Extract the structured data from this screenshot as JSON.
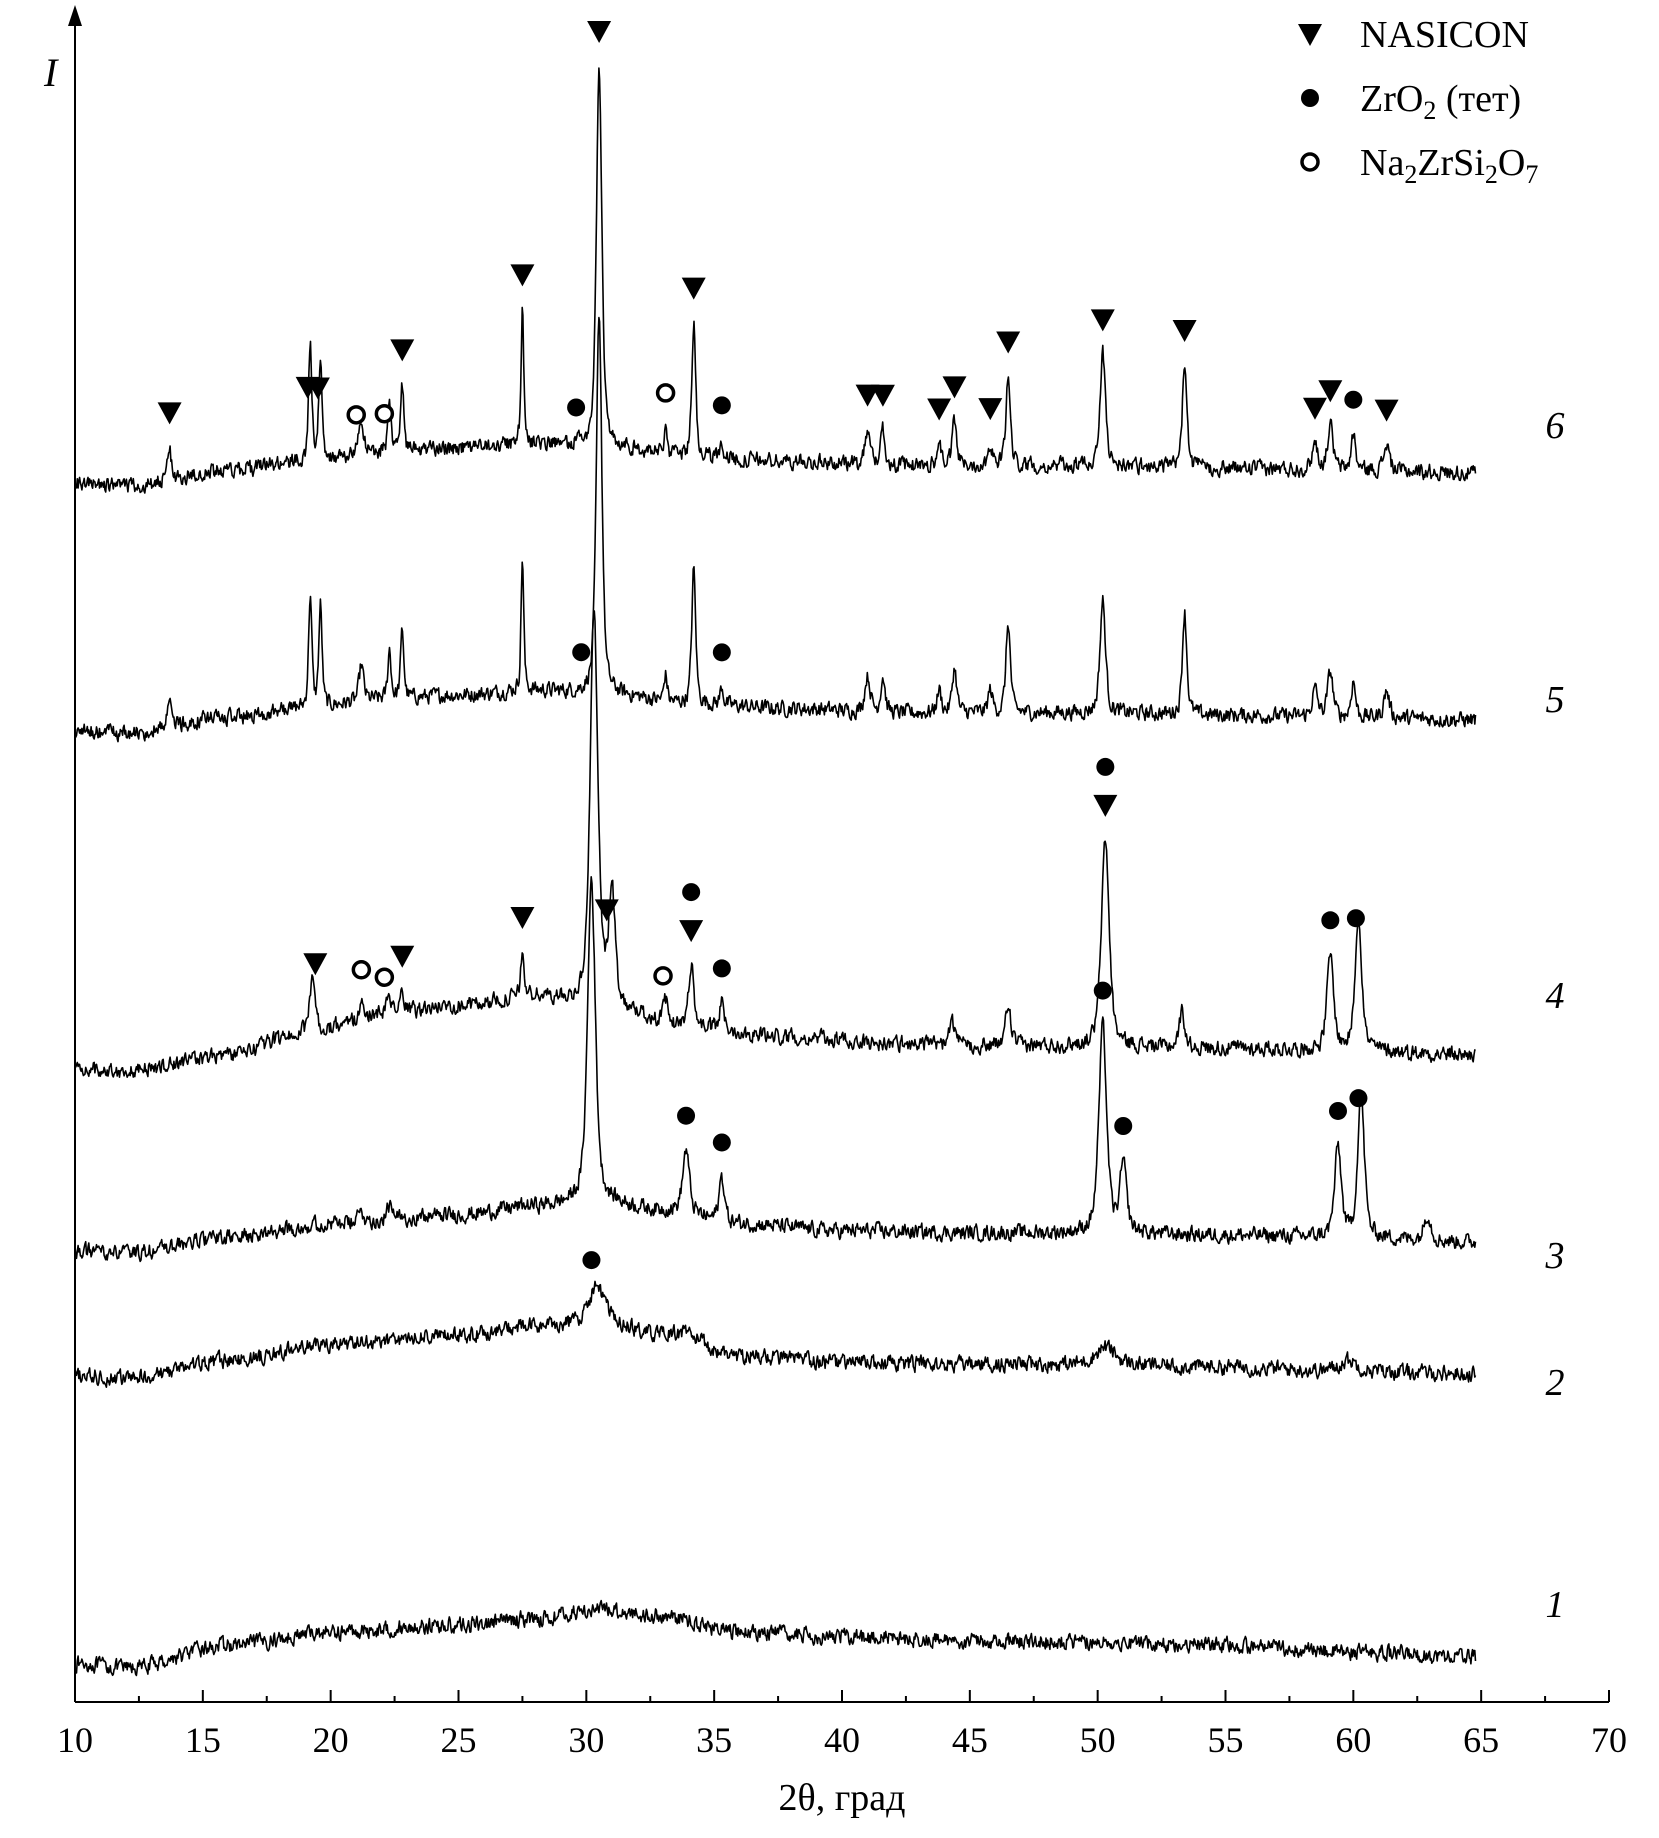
{
  "chart_data": {
    "type": "line",
    "title": "",
    "xlabel": "2θ, град",
    "ylabel": "I",
    "xlim": [
      10,
      70
    ],
    "xticks": [
      10,
      15,
      20,
      25,
      30,
      35,
      40,
      45,
      50,
      55,
      60,
      65,
      70
    ],
    "x_range": [
      10,
      64.8
    ],
    "legend": {
      "placement": "top-right",
      "items": [
        {
          "marker": "triangle-down-filled",
          "label": "NASICON"
        },
        {
          "marker": "circle-filled",
          "label": "ZrO",
          "sub": "2",
          "suffix": " (тет)"
        },
        {
          "marker": "circle-open",
          "label": "Na",
          "sub": "2",
          "mid": "ZrSi",
          "sub2": "2",
          "mid2": "O",
          "sub3": "7"
        }
      ]
    },
    "series": [
      {
        "label": "1",
        "baseline": [
          [
            10,
            0.02
          ],
          [
            12,
            0.0
          ],
          [
            16,
            0.1
          ],
          [
            20,
            0.16
          ],
          [
            25,
            0.19
          ],
          [
            28,
            0.22
          ],
          [
            30.5,
            0.26
          ],
          [
            33,
            0.23
          ],
          [
            36,
            0.16
          ],
          [
            40,
            0.14
          ],
          [
            45,
            0.12
          ],
          [
            50,
            0.115
          ],
          [
            55,
            0.1
          ],
          [
            60,
            0.07
          ],
          [
            64.8,
            0.05
          ]
        ],
        "peaks": []
      },
      {
        "label": "2",
        "baseline": [
          [
            10,
            0.04
          ],
          [
            12,
            0.03
          ],
          [
            16,
            0.11
          ],
          [
            20,
            0.18
          ],
          [
            25,
            0.22
          ],
          [
            28,
            0.26
          ],
          [
            30.5,
            0.28
          ],
          [
            33,
            0.22
          ],
          [
            36,
            0.13
          ],
          [
            40,
            0.1
          ],
          [
            45,
            0.09
          ],
          [
            50,
            0.09
          ],
          [
            55,
            0.08
          ],
          [
            60,
            0.06
          ],
          [
            64.8,
            0.05
          ]
        ],
        "peaks": [
          [
            30.4,
            0.16,
            0.7
          ],
          [
            50.3,
            0.08,
            0.9
          ],
          [
            59.8,
            0.05,
            0.8
          ],
          [
            34,
            0.04,
            0.8
          ]
        ]
      },
      {
        "label": "3",
        "baseline": [
          [
            10,
            0.04
          ],
          [
            12,
            0.03
          ],
          [
            16,
            0.1
          ],
          [
            20,
            0.16
          ],
          [
            25,
            0.2
          ],
          [
            28,
            0.24
          ],
          [
            30.5,
            0.26
          ],
          [
            33,
            0.22
          ],
          [
            36,
            0.16
          ],
          [
            40,
            0.13
          ],
          [
            45,
            0.12
          ],
          [
            50,
            0.12
          ],
          [
            55,
            0.11
          ],
          [
            60,
            0.1
          ],
          [
            64.8,
            0.08
          ]
        ],
        "peaks": [
          [
            30.2,
            1.44,
            0.35
          ],
          [
            33.9,
            0.28,
            0.3
          ],
          [
            35.3,
            0.2,
            0.25
          ],
          [
            50.2,
            0.92,
            0.35
          ],
          [
            51,
            0.3,
            0.3
          ],
          [
            59.4,
            0.4,
            0.3
          ],
          [
            60.3,
            0.64,
            0.3
          ],
          [
            62.9,
            0.12,
            0.3
          ],
          [
            21.2,
            0.05,
            0.25
          ],
          [
            22.3,
            0.06,
            0.25
          ]
        ]
      },
      {
        "label": "4",
        "baseline": [
          [
            10,
            0.06
          ],
          [
            12,
            0.05
          ],
          [
            16,
            0.12
          ],
          [
            19,
            0.22
          ],
          [
            22,
            0.3
          ],
          [
            25,
            0.34
          ],
          [
            28,
            0.38
          ],
          [
            31,
            0.32
          ],
          [
            34,
            0.24
          ],
          [
            38,
            0.2
          ],
          [
            42,
            0.17
          ],
          [
            46,
            0.16
          ],
          [
            50,
            0.16
          ],
          [
            55,
            0.15
          ],
          [
            60,
            0.14
          ],
          [
            64.8,
            0.12
          ]
        ],
        "peaks": [
          [
            19.3,
            0.24,
            0.25
          ],
          [
            21.2,
            0.06,
            0.2
          ],
          [
            22.3,
            0.08,
            0.2
          ],
          [
            22.8,
            0.1,
            0.15
          ],
          [
            27.5,
            0.2,
            0.15
          ],
          [
            30.3,
            1.78,
            0.35
          ],
          [
            31,
            0.5,
            0.3
          ],
          [
            33.1,
            0.1,
            0.2
          ],
          [
            34.1,
            0.28,
            0.25
          ],
          [
            35.3,
            0.12,
            0.2
          ],
          [
            44.3,
            0.12,
            0.2
          ],
          [
            46.5,
            0.18,
            0.25
          ],
          [
            50.3,
            0.92,
            0.35
          ],
          [
            53.3,
            0.16,
            0.25
          ],
          [
            59.1,
            0.42,
            0.3
          ],
          [
            60.2,
            0.6,
            0.3
          ]
        ]
      },
      {
        "label": "5",
        "baseline": [
          [
            10,
            0.04
          ],
          [
            12,
            0.03
          ],
          [
            16,
            0.1
          ],
          [
            19,
            0.14
          ],
          [
            22,
            0.18
          ],
          [
            25,
            0.2
          ],
          [
            28,
            0.22
          ],
          [
            31,
            0.2
          ],
          [
            34,
            0.16
          ],
          [
            38,
            0.14
          ],
          [
            42,
            0.12
          ],
          [
            46,
            0.12
          ],
          [
            50,
            0.12
          ],
          [
            55,
            0.11
          ],
          [
            60,
            0.1
          ],
          [
            64.8,
            0.09
          ]
        ],
        "peaks": [
          [
            13.7,
            0.15,
            0.15
          ],
          [
            19.2,
            0.5,
            0.15
          ],
          [
            19.6,
            0.45,
            0.15
          ],
          [
            21.2,
            0.16,
            0.2
          ],
          [
            22.3,
            0.22,
            0.15
          ],
          [
            22.8,
            0.3,
            0.15
          ],
          [
            27.5,
            0.6,
            0.12
          ],
          [
            30.5,
            1.7,
            0.25
          ],
          [
            33.1,
            0.12,
            0.15
          ],
          [
            34.2,
            0.6,
            0.18
          ],
          [
            35.3,
            0.08,
            0.15
          ],
          [
            41,
            0.16,
            0.25
          ],
          [
            41.6,
            0.16,
            0.2
          ],
          [
            43.8,
            0.1,
            0.2
          ],
          [
            44.4,
            0.2,
            0.2
          ],
          [
            45.8,
            0.1,
            0.2
          ],
          [
            46.5,
            0.4,
            0.2
          ],
          [
            50.2,
            0.5,
            0.25
          ],
          [
            53.4,
            0.46,
            0.2
          ],
          [
            58.5,
            0.12,
            0.25
          ],
          [
            59.1,
            0.2,
            0.25
          ],
          [
            60,
            0.16,
            0.2
          ],
          [
            61.3,
            0.12,
            0.25
          ]
        ]
      },
      {
        "label": "6",
        "baseline": [
          [
            10,
            0.04
          ],
          [
            12,
            0.03
          ],
          [
            16,
            0.1
          ],
          [
            19,
            0.14
          ],
          [
            22,
            0.18
          ],
          [
            25,
            0.2
          ],
          [
            28,
            0.22
          ],
          [
            31,
            0.2
          ],
          [
            34,
            0.16
          ],
          [
            38,
            0.14
          ],
          [
            42,
            0.12
          ],
          [
            46,
            0.12
          ],
          [
            50,
            0.12
          ],
          [
            55,
            0.11
          ],
          [
            60,
            0.1
          ],
          [
            64.8,
            0.09
          ]
        ],
        "peaks": [
          [
            13.7,
            0.15,
            0.15
          ],
          [
            19.2,
            0.5,
            0.15
          ],
          [
            19.6,
            0.45,
            0.15
          ],
          [
            21.2,
            0.16,
            0.2
          ],
          [
            22.3,
            0.22,
            0.15
          ],
          [
            22.8,
            0.3,
            0.15
          ],
          [
            27.5,
            0.6,
            0.12
          ],
          [
            30.5,
            1.7,
            0.25
          ],
          [
            33.1,
            0.12,
            0.15
          ],
          [
            34.2,
            0.6,
            0.18
          ],
          [
            35.3,
            0.08,
            0.15
          ],
          [
            41,
            0.16,
            0.25
          ],
          [
            41.6,
            0.16,
            0.2
          ],
          [
            43.8,
            0.1,
            0.2
          ],
          [
            44.4,
            0.2,
            0.2
          ],
          [
            45.8,
            0.1,
            0.2
          ],
          [
            46.5,
            0.4,
            0.2
          ],
          [
            50.2,
            0.5,
            0.25
          ],
          [
            53.4,
            0.46,
            0.2
          ],
          [
            58.5,
            0.12,
            0.25
          ],
          [
            59.1,
            0.2,
            0.25
          ],
          [
            60,
            0.16,
            0.2
          ],
          [
            61.3,
            0.12,
            0.25
          ]
        ]
      }
    ],
    "markers": [
      {
        "series": "6",
        "type": "triangle",
        "x": [
          13.7,
          19.1,
          19.5,
          22.8,
          27.5,
          30.5,
          34.2,
          41,
          41.6,
          44.4,
          43.8,
          45.8,
          46.5,
          50.2,
          53.4,
          58.5,
          59.1,
          61.3
        ]
      },
      {
        "series": "6",
        "type": "circle-filled",
        "x": [
          29.6,
          35.3,
          60
        ]
      },
      {
        "series": "6",
        "type": "circle-open",
        "x": [
          21,
          22.1,
          33.1
        ]
      },
      {
        "series": "5",
        "type": "circle-filled",
        "x": [
          29.8,
          35.3
        ]
      },
      {
        "series": "4",
        "type": "triangle",
        "x": [
          19.4,
          22.8,
          27.5,
          30.8,
          34.1,
          50.3
        ]
      },
      {
        "series": "4",
        "type": "circle-filled",
        "x": [
          34.1,
          35.3,
          50.3,
          59.1,
          60.1
        ]
      },
      {
        "series": "4",
        "type": "circle-open",
        "x": [
          21.2,
          22.1,
          33
        ]
      },
      {
        "series": "3",
        "type": "circle-filled",
        "x": [
          33.9,
          35.3,
          50.2,
          51,
          59.4,
          60.2
        ]
      },
      {
        "series": "2",
        "type": "circle-filled",
        "x": [
          30.2
        ]
      }
    ]
  }
}
